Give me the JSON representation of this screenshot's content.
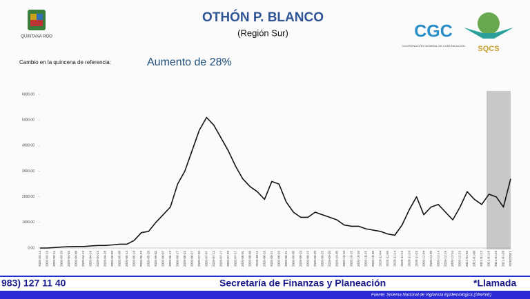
{
  "header": {
    "title": "OTHÓN P. BLANCO",
    "subtitle": "(Región Sur)",
    "state_logo": "QUINTANA ROO",
    "cgc_logo": "CGC",
    "cgc_caption": "COORDINACIÓN GENERAL DE COMUNICACIÓN",
    "sqcs_logo": "SQCS"
  },
  "summary": {
    "label": "Cambio en la quincena de referencia:",
    "value_text": "Aumento de 28%"
  },
  "chart_data": {
    "type": "line",
    "color": "#111111",
    "categories": [
      "2020-03-14",
      "2020-03-19",
      "2020-03-24",
      "2020-03-29",
      "2020-04-03",
      "2020-04-08",
      "2020-04-13",
      "2020-04-18",
      "2020-04-23",
      "2020-04-28",
      "2020-05-03",
      "2020-05-08",
      "2020-05-13",
      "2020-05-18",
      "2020-05-23",
      "2020-05-28",
      "2020-06-02",
      "2020-06-07",
      "2020-06-12",
      "2020-06-17",
      "2020-06-22",
      "2020-06-27",
      "2020-07-02",
      "2020-07-07",
      "2020-07-12",
      "2020-07-17",
      "2020-07-22",
      "2020-07-27",
      "2020-08-01",
      "2020-08-06",
      "2020-08-11",
      "2020-08-16",
      "2020-08-21",
      "2020-08-26",
      "2020-08-31",
      "2020-09-05",
      "2020-09-10",
      "2020-09-15",
      "2020-09-20",
      "2020-09-25",
      "2020-09-30",
      "2020-10-05",
      "2020-10-10",
      "2020-10-15",
      "2020-10-20",
      "2020-10-25",
      "2020-10-30",
      "2020-11-04",
      "2020-11-09",
      "2020-11-14",
      "2020-11-19",
      "2020-11-24",
      "2020-11-29",
      "2020-12-04",
      "2020-12-09",
      "2020-12-14",
      "2020-12-19",
      "2020-12-24",
      "2020-12-29",
      "2021-01-03",
      "2021-01-08",
      "2021-01-13",
      "2021-01-18",
      "2021-01-23",
      "2021-01-28",
      "02/02/2021"
    ],
    "values": [
      0,
      0,
      20,
      40,
      50,
      60,
      60,
      80,
      100,
      100,
      120,
      150,
      150,
      300,
      600,
      650,
      1000,
      1300,
      1600,
      2500,
      3000,
      3800,
      4600,
      5100,
      4800,
      4300,
      3800,
      3200,
      2700,
      2400,
      2200,
      1900,
      2600,
      2500,
      1800,
      1400,
      1200,
      1200,
      1400,
      1300,
      1200,
      1100,
      900,
      850,
      850,
      750,
      700,
      650,
      550,
      500,
      900,
      1500,
      2000,
      1300,
      1600,
      1700,
      1400,
      1100,
      1600,
      2200,
      1900,
      1700,
      2100,
      2000,
      1600,
      2700
    ],
    "ylim": [
      0,
      6000
    ],
    "yticks": [
      {
        "value": 0,
        "label": "0.00"
      },
      {
        "value": 1000,
        "label": "1000.00"
      },
      {
        "value": 2000,
        "label": "2000.00"
      },
      {
        "value": 3000,
        "label": "3000.00"
      },
      {
        "value": 4000,
        "label": "4000.00"
      },
      {
        "value": 5000,
        "label": "5000.00"
      },
      {
        "value": 6000,
        "label": "6000.00"
      }
    ]
  },
  "ticker": {
    "phone": "983) 127 11 40",
    "agency": "Secretaría de Finanzas y Planeación",
    "call": "*Llamada",
    "source": "Fuente: Sistema Nacional de Vigilancia Epidemiológica (SINAVE)"
  }
}
